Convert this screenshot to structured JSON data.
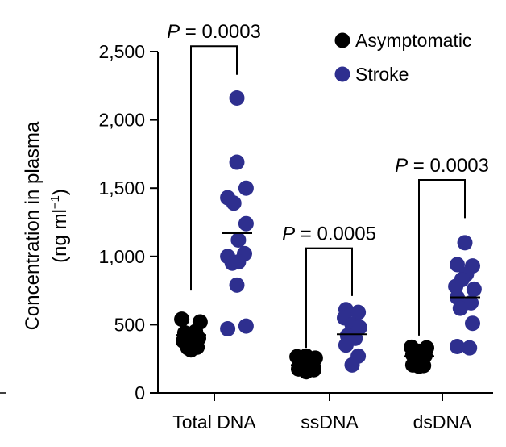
{
  "chart_data": {
    "type": "scatter",
    "title": "",
    "ylabel_line1": "Concentration in plasma",
    "ylabel_line2_prefix": "(ng ml",
    "ylabel_line2_sup": "−1",
    "ylabel_line2_suffix": ")",
    "ylim": [
      0,
      2500
    ],
    "yticks": [
      0,
      500,
      1000,
      1500,
      2000,
      2500
    ],
    "ytick_labels": [
      "0",
      "500",
      "1,000",
      "1,500",
      "2,000",
      "2,500"
    ],
    "grid": false,
    "legend_position": "top-right",
    "categories": [
      "Total DNA",
      "ssDNA",
      "dsDNA"
    ],
    "series": [
      {
        "name": "Asymptomatic",
        "color": "#000000",
        "groups": [
          {
            "category": "Total DNA",
            "median": 425,
            "points": [
              {
                "offset": -0.3,
                "y": 540
              },
              {
                "offset": 0.3,
                "y": 520
              },
              {
                "offset": -0.2,
                "y": 440
              },
              {
                "offset": 0.15,
                "y": 450
              },
              {
                "offset": -0.05,
                "y": 410
              },
              {
                "offset": 0.25,
                "y": 400
              },
              {
                "offset": -0.25,
                "y": 380
              },
              {
                "offset": 0.05,
                "y": 360
              },
              {
                "offset": -0.1,
                "y": 330
              },
              {
                "offset": 0.2,
                "y": 335
              },
              {
                "offset": 0.0,
                "y": 315
              }
            ]
          },
          {
            "category": "ssDNA",
            "median": 205,
            "points": [
              {
                "offset": -0.3,
                "y": 265
              },
              {
                "offset": 0.0,
                "y": 270
              },
              {
                "offset": 0.3,
                "y": 255
              },
              {
                "offset": -0.2,
                "y": 220
              },
              {
                "offset": 0.2,
                "y": 215
              },
              {
                "offset": -0.1,
                "y": 195
              },
              {
                "offset": 0.1,
                "y": 190
              },
              {
                "offset": -0.25,
                "y": 175
              },
              {
                "offset": 0.25,
                "y": 170
              },
              {
                "offset": 0.0,
                "y": 155
              }
            ]
          },
          {
            "category": "dsDNA",
            "median": 270,
            "points": [
              {
                "offset": -0.25,
                "y": 335
              },
              {
                "offset": 0.25,
                "y": 330
              },
              {
                "offset": 0.0,
                "y": 305
              },
              {
                "offset": -0.2,
                "y": 280
              },
              {
                "offset": 0.2,
                "y": 275
              },
              {
                "offset": -0.1,
                "y": 245
              },
              {
                "offset": 0.1,
                "y": 235
              },
              {
                "offset": -0.2,
                "y": 205
              },
              {
                "offset": 0.15,
                "y": 200
              },
              {
                "offset": 0.0,
                "y": 195
              }
            ]
          }
        ]
      },
      {
        "name": "Stroke",
        "color": "#2e2f8f",
        "groups": [
          {
            "category": "Total DNA",
            "median": 1170,
            "points": [
              {
                "offset": 0.0,
                "y": 2160
              },
              {
                "offset": 0.0,
                "y": 1690
              },
              {
                "offset": 0.3,
                "y": 1500
              },
              {
                "offset": -0.3,
                "y": 1430
              },
              {
                "offset": -0.1,
                "y": 1390
              },
              {
                "offset": 0.3,
                "y": 1240
              },
              {
                "offset": 0.05,
                "y": 1120
              },
              {
                "offset": -0.3,
                "y": 1000
              },
              {
                "offset": 0.25,
                "y": 1020
              },
              {
                "offset": -0.15,
                "y": 950
              },
              {
                "offset": 0.05,
                "y": 960
              },
              {
                "offset": 0.0,
                "y": 790
              },
              {
                "offset": -0.3,
                "y": 470
              },
              {
                "offset": 0.3,
                "y": 490
              }
            ]
          },
          {
            "category": "ssDNA",
            "median": 430,
            "points": [
              {
                "offset": -0.2,
                "y": 610
              },
              {
                "offset": 0.2,
                "y": 590
              },
              {
                "offset": -0.25,
                "y": 550
              },
              {
                "offset": 0.0,
                "y": 500
              },
              {
                "offset": 0.25,
                "y": 480
              },
              {
                "offset": -0.15,
                "y": 420
              },
              {
                "offset": 0.1,
                "y": 400
              },
              {
                "offset": -0.2,
                "y": 350
              },
              {
                "offset": 0.2,
                "y": 270
              },
              {
                "offset": 0.0,
                "y": 205
              }
            ]
          },
          {
            "category": "dsDNA",
            "median": 700,
            "points": [
              {
                "offset": 0.0,
                "y": 1100
              },
              {
                "offset": -0.25,
                "y": 940
              },
              {
                "offset": 0.25,
                "y": 930
              },
              {
                "offset": 0.05,
                "y": 870
              },
              {
                "offset": -0.1,
                "y": 830
              },
              {
                "offset": -0.3,
                "y": 780
              },
              {
                "offset": 0.3,
                "y": 760
              },
              {
                "offset": -0.25,
                "y": 700
              },
              {
                "offset": 0.2,
                "y": 660
              },
              {
                "offset": -0.15,
                "y": 620
              },
              {
                "offset": 0.25,
                "y": 510
              },
              {
                "offset": -0.25,
                "y": 340
              },
              {
                "offset": 0.15,
                "y": 330
              }
            ]
          }
        ]
      }
    ],
    "annotations": [
      {
        "category": "Total DNA",
        "p_letter": "P",
        "p_text": " = 0.0003",
        "bracket_y": 2540,
        "low_y": [
          750,
          2330
        ]
      },
      {
        "category": "ssDNA",
        "p_letter": "P",
        "p_text": " = 0.0005",
        "bracket_y": 1060,
        "low_y": [
          330,
          710
        ]
      },
      {
        "category": "dsDNA",
        "p_letter": "P",
        "p_text": " = 0.0003",
        "bracket_y": 1560,
        "low_y": [
          420,
          1280
        ]
      }
    ]
  }
}
